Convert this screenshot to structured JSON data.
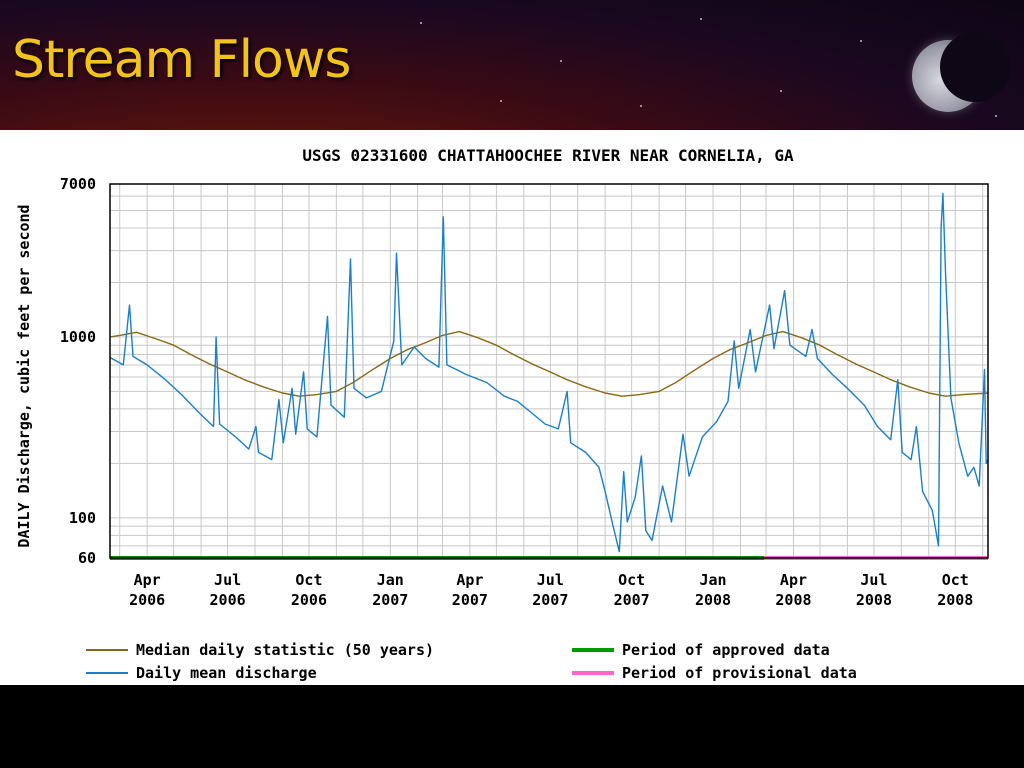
{
  "slide": {
    "title": "Stream Flows"
  },
  "chart_data": {
    "type": "line",
    "title": "USGS 02331600 CHATTAHOOCHEE RIVER NEAR CORNELIA, GA",
    "ylabel": "DAILY Discharge, cubic feet per second",
    "xlabel": "",
    "yscale": "log",
    "ylim": [
      60,
      7000
    ],
    "y_tick_labels": [
      "7000",
      "1000",
      "100",
      "60"
    ],
    "y_ticks": [
      7000,
      1000,
      100,
      60
    ],
    "xlim": [
      "2006-02-18",
      "2008-11-07"
    ],
    "x_ticks": [
      {
        "date": "2006-04-01",
        "line1": "Apr",
        "line2": "2006"
      },
      {
        "date": "2006-07-01",
        "line1": "Jul",
        "line2": "2006"
      },
      {
        "date": "2006-10-01",
        "line1": "Oct",
        "line2": "2006"
      },
      {
        "date": "2007-01-01",
        "line1": "Jan",
        "line2": "2007"
      },
      {
        "date": "2007-04-01",
        "line1": "Apr",
        "line2": "2007"
      },
      {
        "date": "2007-07-01",
        "line1": "Jul",
        "line2": "2007"
      },
      {
        "date": "2007-10-01",
        "line1": "Oct",
        "line2": "2007"
      },
      {
        "date": "2008-01-01",
        "line1": "Jan",
        "line2": "2008"
      },
      {
        "date": "2008-04-01",
        "line1": "Apr",
        "line2": "2008"
      },
      {
        "date": "2008-07-01",
        "line1": "Jul",
        "line2": "2008"
      },
      {
        "date": "2008-10-01",
        "line1": "Oct",
        "line2": "2008"
      }
    ],
    "grid": true,
    "legend_position": "bottom",
    "series": [
      {
        "name": "Median daily statistic (50 years)",
        "color": "#8b6914",
        "points": [
          [
            "2006-02-18",
            1000
          ],
          [
            "2006-03-01",
            1020
          ],
          [
            "2006-03-20",
            1060
          ],
          [
            "2006-04-10",
            980
          ],
          [
            "2006-05-01",
            900
          ],
          [
            "2006-05-20",
            800
          ],
          [
            "2006-06-10",
            710
          ],
          [
            "2006-07-01",
            640
          ],
          [
            "2006-07-20",
            580
          ],
          [
            "2006-08-10",
            530
          ],
          [
            "2006-09-01",
            490
          ],
          [
            "2006-09-20",
            470
          ],
          [
            "2006-10-10",
            480
          ],
          [
            "2006-11-01",
            500
          ],
          [
            "2006-11-20",
            560
          ],
          [
            "2006-12-10",
            650
          ],
          [
            "2007-01-01",
            760
          ],
          [
            "2007-01-20",
            850
          ],
          [
            "2007-02-10",
            930
          ],
          [
            "2007-03-01",
            1020
          ],
          [
            "2007-03-20",
            1070
          ],
          [
            "2007-04-10",
            990
          ],
          [
            "2007-05-01",
            900
          ],
          [
            "2007-05-20",
            800
          ],
          [
            "2007-06-10",
            710
          ],
          [
            "2007-07-01",
            640
          ],
          [
            "2007-07-20",
            580
          ],
          [
            "2007-08-10",
            530
          ],
          [
            "2007-09-01",
            490
          ],
          [
            "2007-09-20",
            470
          ],
          [
            "2007-10-10",
            480
          ],
          [
            "2007-11-01",
            500
          ],
          [
            "2007-11-20",
            560
          ],
          [
            "2007-12-10",
            650
          ],
          [
            "2008-01-01",
            760
          ],
          [
            "2008-01-20",
            850
          ],
          [
            "2008-02-10",
            930
          ],
          [
            "2008-03-01",
            1020
          ],
          [
            "2008-03-20",
            1070
          ],
          [
            "2008-04-10",
            990
          ],
          [
            "2008-05-01",
            900
          ],
          [
            "2008-05-20",
            800
          ],
          [
            "2008-06-10",
            710
          ],
          [
            "2008-07-01",
            640
          ],
          [
            "2008-07-20",
            580
          ],
          [
            "2008-08-10",
            530
          ],
          [
            "2008-09-01",
            490
          ],
          [
            "2008-09-20",
            470
          ],
          [
            "2008-10-10",
            480
          ],
          [
            "2008-11-07",
            490
          ]
        ]
      },
      {
        "name": "Daily mean discharge",
        "color": "#1a7fc8",
        "points": [
          [
            "2006-02-18",
            770
          ],
          [
            "2006-03-05",
            700
          ],
          [
            "2006-03-12",
            1500
          ],
          [
            "2006-03-16",
            780
          ],
          [
            "2006-04-01",
            700
          ],
          [
            "2006-04-20",
            590
          ],
          [
            "2006-05-10",
            480
          ],
          [
            "2006-05-30",
            380
          ],
          [
            "2006-06-15",
            320
          ],
          [
            "2006-06-18",
            1000
          ],
          [
            "2006-06-22",
            330
          ],
          [
            "2006-07-10",
            280
          ],
          [
            "2006-07-25",
            240
          ],
          [
            "2006-08-02",
            320
          ],
          [
            "2006-08-05",
            230
          ],
          [
            "2006-08-20",
            210
          ],
          [
            "2006-08-28",
            450
          ],
          [
            "2006-09-02",
            260
          ],
          [
            "2006-09-12",
            520
          ],
          [
            "2006-09-16",
            290
          ],
          [
            "2006-09-25",
            640
          ],
          [
            "2006-09-29",
            310
          ],
          [
            "2006-10-10",
            280
          ],
          [
            "2006-10-22",
            1300
          ],
          [
            "2006-10-26",
            420
          ],
          [
            "2006-11-10",
            360
          ],
          [
            "2006-11-17",
            2700
          ],
          [
            "2006-11-21",
            520
          ],
          [
            "2006-12-05",
            460
          ],
          [
            "2006-12-22",
            500
          ],
          [
            "2007-01-05",
            950
          ],
          [
            "2007-01-08",
            2900
          ],
          [
            "2007-01-14",
            700
          ],
          [
            "2007-01-28",
            880
          ],
          [
            "2007-02-10",
            760
          ],
          [
            "2007-02-25",
            680
          ],
          [
            "2007-03-02",
            4600
          ],
          [
            "2007-03-06",
            700
          ],
          [
            "2007-03-28",
            620
          ],
          [
            "2007-04-20",
            560
          ],
          [
            "2007-05-10",
            470
          ],
          [
            "2007-05-25",
            440
          ],
          [
            "2007-06-10",
            380
          ],
          [
            "2007-06-25",
            330
          ],
          [
            "2007-07-10",
            310
          ],
          [
            "2007-07-20",
            500
          ],
          [
            "2007-07-24",
            260
          ],
          [
            "2007-08-10",
            230
          ],
          [
            "2007-08-25",
            190
          ],
          [
            "2007-09-01",
            140
          ],
          [
            "2007-09-10",
            90
          ],
          [
            "2007-09-17",
            65
          ],
          [
            "2007-09-22",
            180
          ],
          [
            "2007-09-26",
            95
          ],
          [
            "2007-10-05",
            130
          ],
          [
            "2007-10-12",
            220
          ],
          [
            "2007-10-17",
            85
          ],
          [
            "2007-10-24",
            75
          ],
          [
            "2007-11-05",
            150
          ],
          [
            "2007-11-15",
            95
          ],
          [
            "2007-11-28",
            290
          ],
          [
            "2007-12-05",
            170
          ],
          [
            "2007-12-20",
            280
          ],
          [
            "2008-01-05",
            340
          ],
          [
            "2008-01-18",
            440
          ],
          [
            "2008-01-25",
            950
          ],
          [
            "2008-01-30",
            520
          ],
          [
            "2008-02-12",
            1100
          ],
          [
            "2008-02-18",
            640
          ],
          [
            "2008-03-05",
            1500
          ],
          [
            "2008-03-10",
            860
          ],
          [
            "2008-03-22",
            1800
          ],
          [
            "2008-03-28",
            900
          ],
          [
            "2008-04-15",
            780
          ],
          [
            "2008-04-22",
            1100
          ],
          [
            "2008-04-28",
            760
          ],
          [
            "2008-05-15",
            620
          ],
          [
            "2008-06-01",
            520
          ],
          [
            "2008-06-20",
            420
          ],
          [
            "2008-07-05",
            320
          ],
          [
            "2008-07-20",
            270
          ],
          [
            "2008-07-28",
            580
          ],
          [
            "2008-08-02",
            230
          ],
          [
            "2008-08-12",
            210
          ],
          [
            "2008-08-18",
            320
          ],
          [
            "2008-08-25",
            140
          ],
          [
            "2008-09-05",
            110
          ],
          [
            "2008-09-12",
            70
          ],
          [
            "2008-09-15",
            4000
          ],
          [
            "2008-09-17",
            6200
          ],
          [
            "2008-09-20",
            2200
          ],
          [
            "2008-09-26",
            460
          ],
          [
            "2008-10-05",
            260
          ],
          [
            "2008-10-15",
            170
          ],
          [
            "2008-10-22",
            190
          ],
          [
            "2008-10-28",
            150
          ],
          [
            "2008-11-03",
            660
          ],
          [
            "2008-11-05",
            200
          ],
          [
            "2008-11-07",
            210
          ]
        ]
      }
    ],
    "periods": [
      {
        "name": "Period of approved data",
        "color": "#009900",
        "start": "2006-02-18",
        "end": "2008-02-28"
      },
      {
        "name": "Period of provisional data",
        "color": "#ff66cc",
        "start": "2008-02-28",
        "end": "2008-11-07"
      }
    ]
  },
  "legend": {
    "median_label": "Median daily statistic (50 years)",
    "daily_label": "Daily mean discharge",
    "approved_label": "Period of approved data",
    "provisional_label": "Period of provisional data"
  }
}
